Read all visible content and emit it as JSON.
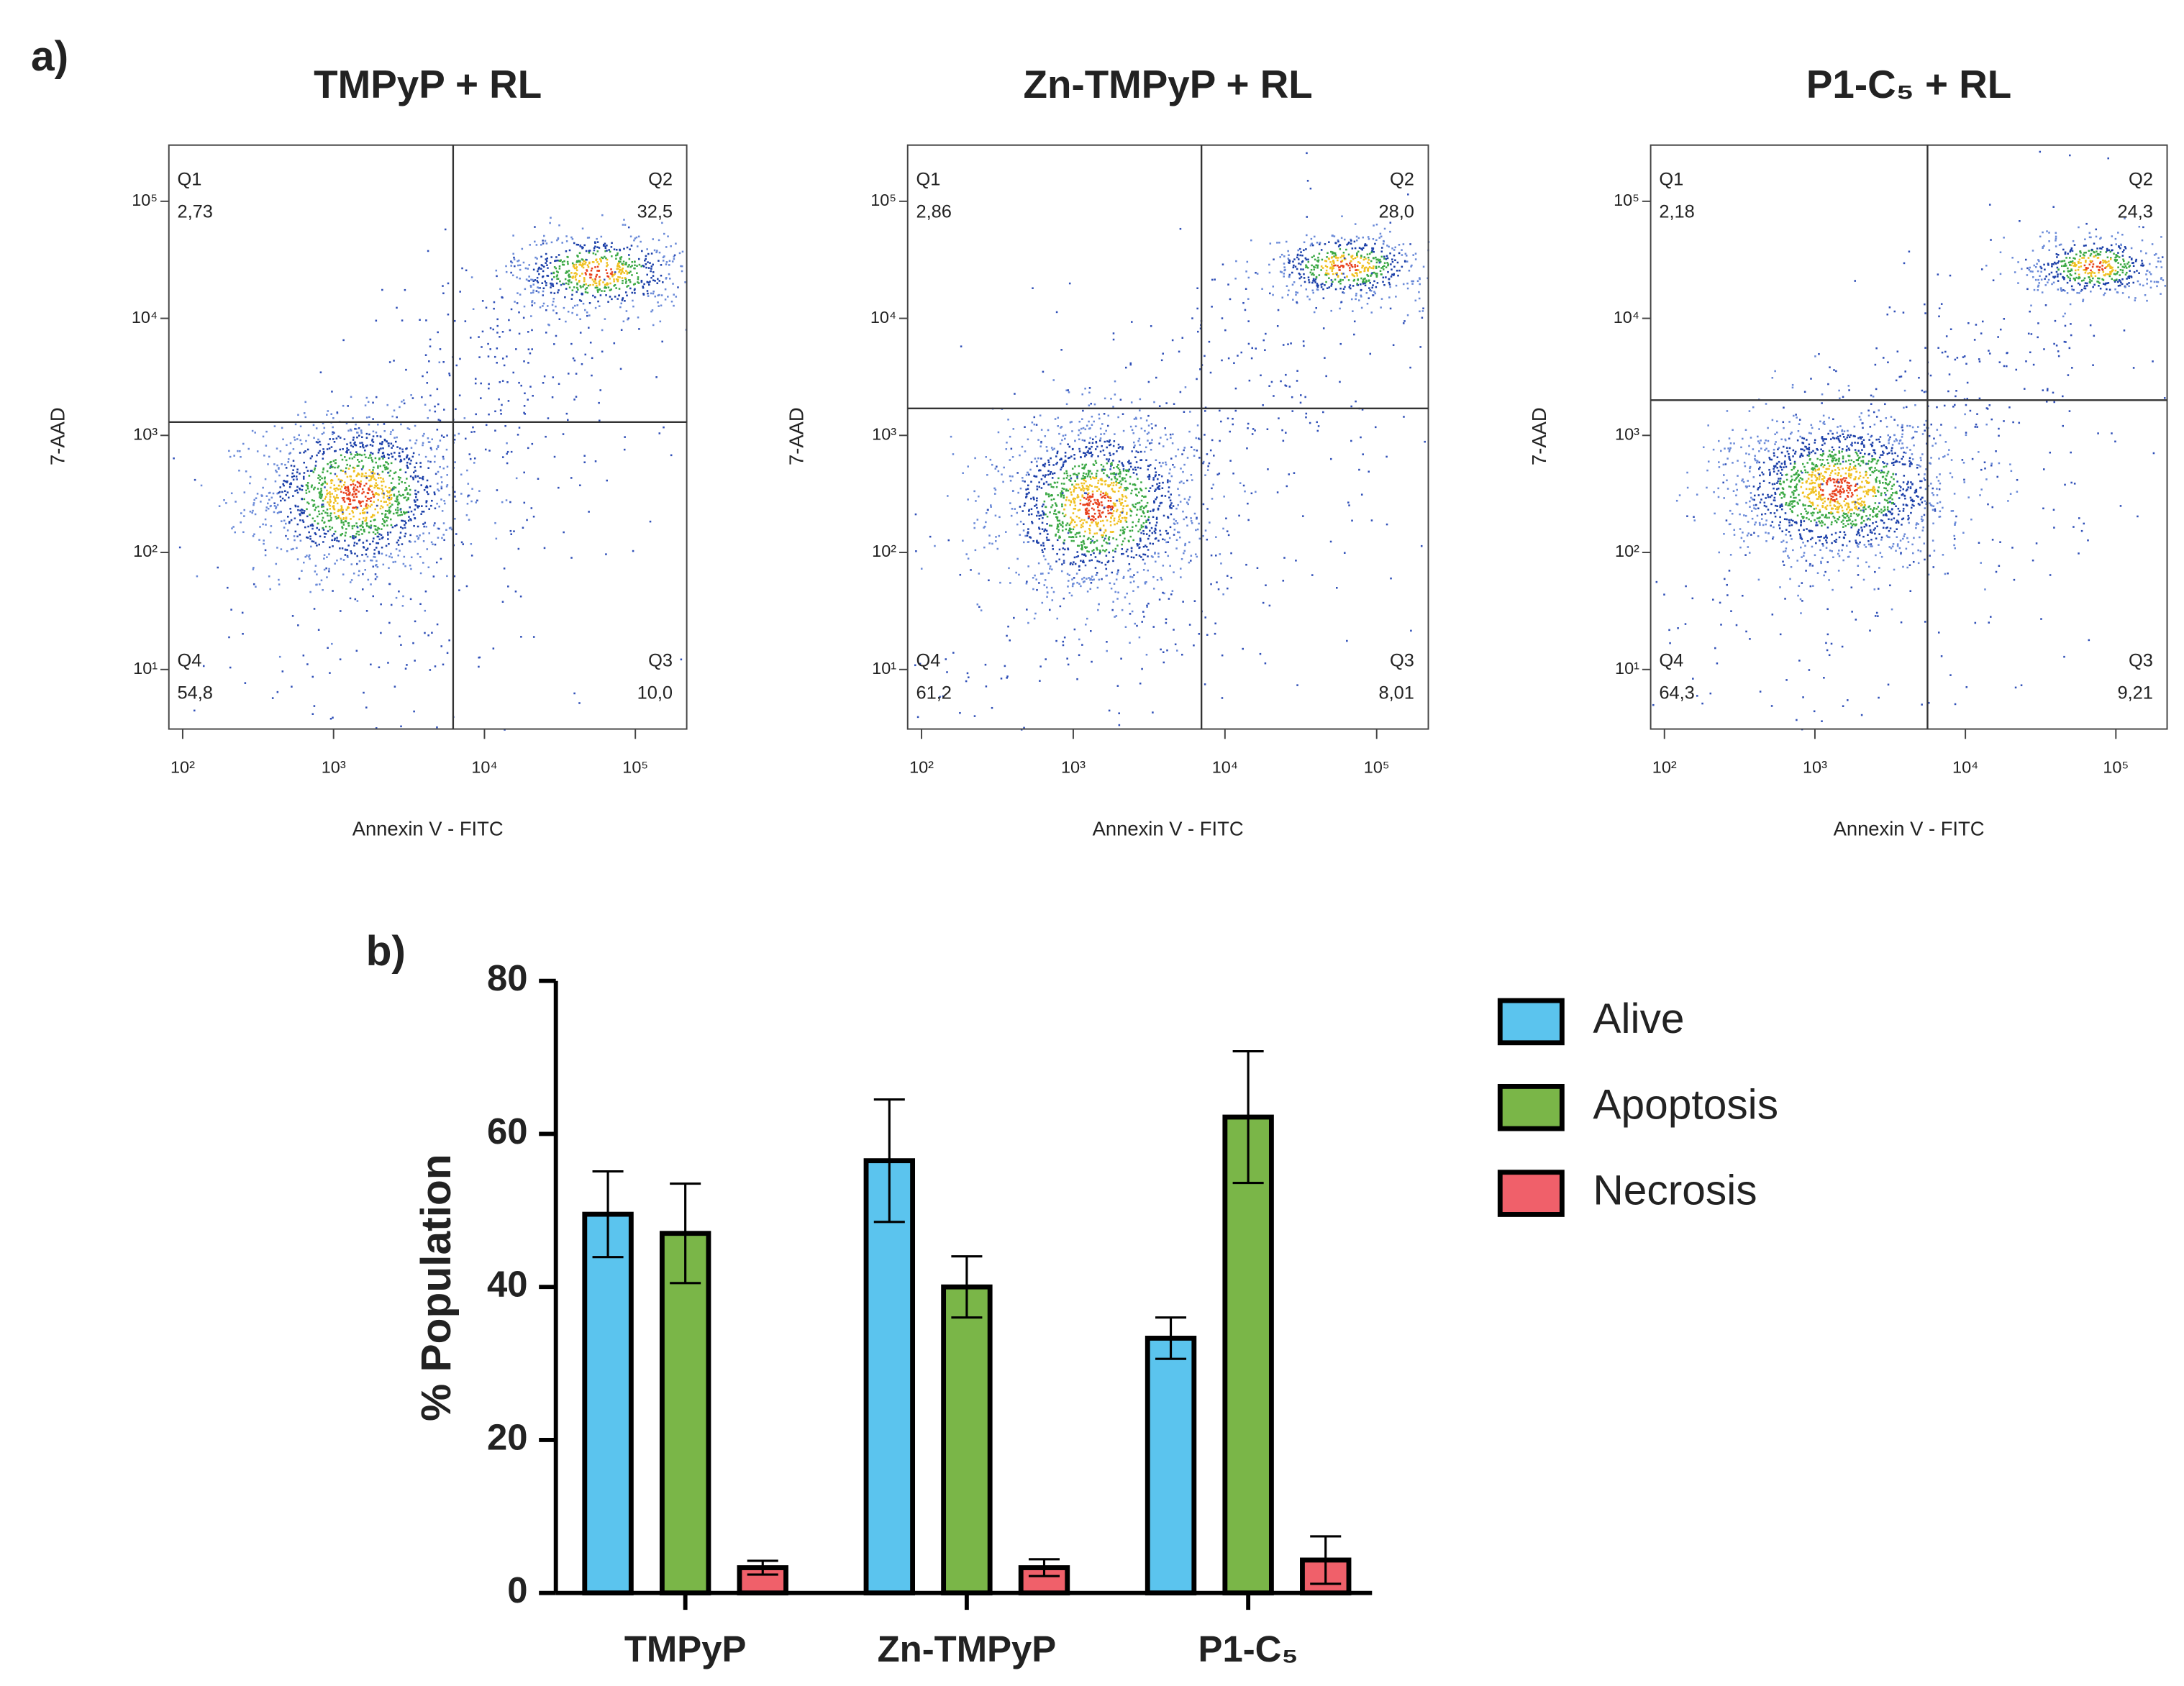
{
  "panel_labels": [
    "a)",
    "b)"
  ],
  "chart_data": [
    {
      "type": "flow",
      "title": "TMPyP + RL",
      "xlabel": "Annexin V - FITC",
      "ylabel": "7-AAD",
      "log_scale": true,
      "xlim": [
        81,
        219000
      ],
      "ylim": [
        3.1,
        302000
      ],
      "xticks": [
        {
          "value": 100,
          "label": "10²"
        },
        {
          "value": 1000,
          "label": "10³"
        },
        {
          "value": 10000,
          "label": "10⁴"
        },
        {
          "value": 100000,
          "label": "10⁵"
        }
      ],
      "yticks": [
        {
          "value": 10,
          "label": "10¹"
        },
        {
          "value": 100,
          "label": "10²"
        },
        {
          "value": 1000,
          "label": "10³"
        },
        {
          "value": 10000,
          "label": "10⁴"
        },
        {
          "value": 100000,
          "label": "10⁵"
        }
      ],
      "gate_x": 6200,
      "gate_y": 1300,
      "quadrant_names": [
        "Q1",
        "Q2",
        "Q3",
        "Q4"
      ],
      "values": [
        2.73,
        32.5,
        10.0,
        54.8
      ],
      "value_labels": [
        "2,73",
        "32,5",
        "10,0",
        "54,8"
      ]
    },
    {
      "type": "flow",
      "title": "Zn-TMPyP + RL",
      "xlabel": "Annexin V - FITC",
      "ylabel": "7-AAD",
      "log_scale": true,
      "xlim": [
        81,
        219000
      ],
      "ylim": [
        3.1,
        302000
      ],
      "xticks": [
        {
          "value": 100,
          "label": "10²"
        },
        {
          "value": 1000,
          "label": "10³"
        },
        {
          "value": 10000,
          "label": "10⁴"
        },
        {
          "value": 100000,
          "label": "10⁵"
        }
      ],
      "yticks": [
        {
          "value": 10,
          "label": "10¹"
        },
        {
          "value": 100,
          "label": "10²"
        },
        {
          "value": 1000,
          "label": "10³"
        },
        {
          "value": 10000,
          "label": "10⁴"
        },
        {
          "value": 100000,
          "label": "10⁵"
        }
      ],
      "gate_x": 7000,
      "gate_y": 1700,
      "quadrant_names": [
        "Q1",
        "Q2",
        "Q3",
        "Q4"
      ],
      "values": [
        2.86,
        28.0,
        8.01,
        61.2
      ],
      "value_labels": [
        "2,86",
        "28,0",
        "8,01",
        "61,2"
      ]
    },
    {
      "type": "flow",
      "title": "P1-C₅ + RL",
      "xlabel": "Annexin V - FITC",
      "ylabel": "7-AAD",
      "log_scale": true,
      "xlim": [
        81,
        219000
      ],
      "ylim": [
        3.1,
        302000
      ],
      "xticks": [
        {
          "value": 100,
          "label": "10²"
        },
        {
          "value": 1000,
          "label": "10³"
        },
        {
          "value": 10000,
          "label": "10⁴"
        },
        {
          "value": 100000,
          "label": "10⁵"
        }
      ],
      "yticks": [
        {
          "value": 10,
          "label": "10¹"
        },
        {
          "value": 100,
          "label": "10²"
        },
        {
          "value": 1000,
          "label": "10³"
        },
        {
          "value": 10000,
          "label": "10⁴"
        },
        {
          "value": 100000,
          "label": "10⁵"
        }
      ],
      "gate_x": 5600,
      "gate_y": 2000,
      "quadrant_names": [
        "Q1",
        "Q2",
        "Q3",
        "Q4"
      ],
      "values": [
        2.18,
        24.3,
        9.21,
        64.3
      ],
      "value_labels": [
        "2,18",
        "24,3",
        "9,21",
        "64,3"
      ]
    },
    {
      "type": "bar",
      "ylabel": "% Population",
      "categories": [
        "TMPyP",
        "Zn-TMPyP",
        "P1-C₅"
      ],
      "ylim": [
        0,
        80
      ],
      "yticks": [
        0,
        20,
        40,
        60,
        80
      ],
      "legend": "right",
      "series": [
        {
          "name": "Alive",
          "color": "#5bc4ee",
          "values": [
            49.5,
            56.5,
            33.3
          ],
          "errors": [
            5.6,
            8.0,
            2.7
          ]
        },
        {
          "name": "Apoptosis",
          "color": "#7ab648",
          "values": [
            47.0,
            40.0,
            62.2
          ],
          "errors": [
            6.5,
            4.0,
            8.6
          ]
        },
        {
          "name": "Necrosis",
          "color": "#f0606a",
          "values": [
            3.3,
            3.3,
            4.3
          ],
          "errors": [
            0.9,
            1.1,
            3.1
          ]
        }
      ]
    }
  ]
}
